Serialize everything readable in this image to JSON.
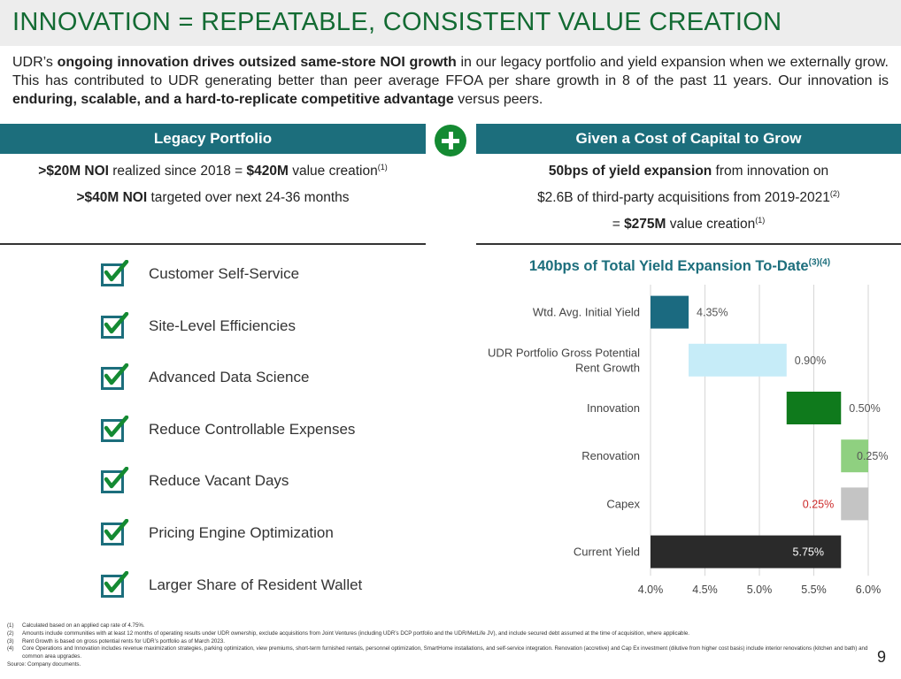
{
  "slide": {
    "title": "INNOVATION = REPEATABLE, CONSISTENT VALUE CREATION",
    "page_number": "9"
  },
  "intro": {
    "p1": "UDR’s ",
    "b1": "ongoing innovation drives outsized same-store NOI growth",
    "p2": " in our legacy portfolio and yield expansion when we externally grow. This has contributed to UDR generating better than peer average FFOA per share growth in 8 of the past 11 years. Our innovation is ",
    "b2": "enduring, scalable, and a hard-to-replicate competitive advantage",
    "p3": " versus peers."
  },
  "legacy": {
    "header": "Legacy Portfolio",
    "line1_b1": ">$20M NOI",
    "line1_t1": " realized since 2018 = ",
    "line1_b2": "$420M",
    "line1_t2": " value creation",
    "line1_sup": "(1)",
    "line2_b": ">$40M NOI",
    "line2_t": " targeted over next 24-36 months"
  },
  "grow": {
    "header": "Given a Cost of Capital to Grow",
    "line1_b": "50bps of yield expansion",
    "line1_t": " from innovation on",
    "line2_t": "$2.6B of third-party acquisitions from 2019-2021",
    "line2_sup": "(2)",
    "line3_t1": "= ",
    "line3_b": "$275M",
    "line3_t2": " value creation",
    "line3_sup": "(1)"
  },
  "checklist": [
    {
      "label": "Customer Self-Service"
    },
    {
      "label": "Site-Level Efficiencies"
    },
    {
      "label": "Advanced Data Science"
    },
    {
      "label": "Reduce Controllable Expenses"
    },
    {
      "label": "Reduce Vacant Days"
    },
    {
      "label": "Pricing Engine Optimization"
    },
    {
      "label": "Larger Share of Resident Wallet"
    }
  ],
  "colors": {
    "title_green": "#136b33",
    "header_teal": "#1c6e7c",
    "check_teal": "#1c6e7c",
    "check_green": "#148a32"
  },
  "chart_data": {
    "type": "bar",
    "subtype": "waterfall-horizontal",
    "title": "140bps of Total Yield Expansion To-Date",
    "title_sup": "(3)(4)",
    "xlim": [
      4.0,
      6.0
    ],
    "xticks": [
      "4.0%",
      "4.5%",
      "5.0%",
      "5.5%",
      "6.0%"
    ],
    "xtick_values": [
      4.0,
      4.5,
      5.0,
      5.5,
      6.0
    ],
    "grid": true,
    "bars": [
      {
        "category": [
          "Wtd. Avg. Initial Yield"
        ],
        "start": 4.0,
        "end": 4.35,
        "label": "4.35%",
        "color": "#1b6a80",
        "label_color": "#555555",
        "label_pos": "outside"
      },
      {
        "category": [
          "UDR Portfolio Gross Potential",
          "Rent Growth"
        ],
        "start": 4.35,
        "end": 5.25,
        "label": "0.90%",
        "color": "#c6ecf8",
        "label_color": "#555555",
        "label_pos": "outside"
      },
      {
        "category": [
          "Innovation"
        ],
        "start": 5.25,
        "end": 5.75,
        "label": "0.50%",
        "color": "#0f7a1c",
        "label_color": "#555555",
        "label_pos": "outside"
      },
      {
        "category": [
          "Renovation"
        ],
        "start": 5.75,
        "end": 6.0,
        "label": "0.25%",
        "color": "#8fd080",
        "label_color": "#555555",
        "label_pos": "overlap"
      },
      {
        "category": [
          "Capex"
        ],
        "start": 5.75,
        "end": 6.0,
        "label": "0.25%",
        "color": "#c4c4c4",
        "label_color": "#cc2a2a",
        "label_pos": "before"
      },
      {
        "category": [
          "Current Yield"
        ],
        "start": 4.0,
        "end": 5.75,
        "label": "5.75%",
        "color": "#2a2a2a",
        "label_color": "#ffffff",
        "label_pos": "inside"
      }
    ]
  },
  "footnotes": [
    {
      "num": "(1)",
      "text": "Calculated based on an applied cap rate of 4.75%."
    },
    {
      "num": "(2)",
      "text": "Amounts include communities with at least 12 months of operating results under UDR ownership, exclude acquisitions from Joint Ventures (including UDR’s DCP portfolio and the UDR/MetLife JV), and include secured debt assumed at the time of acquisition, where applicable."
    },
    {
      "num": "(3)",
      "text": "Rent Growth is based on gross potential rents for UDR’s portfolio as of March 2023."
    },
    {
      "num": "(4)",
      "text": "Core Operations and Innovation includes revenue maximization strategies, parking optimization, view premiums, short-term furnished rentals, personnel optimization, SmartHome installations, and self-service integration. Renovation (accretive) and Cap Ex investment (dilutive from higher cost basis) include interior renovations (kitchen and bath) and common area upgrades."
    },
    {
      "num": "",
      "text": "Source: Company documents."
    }
  ]
}
